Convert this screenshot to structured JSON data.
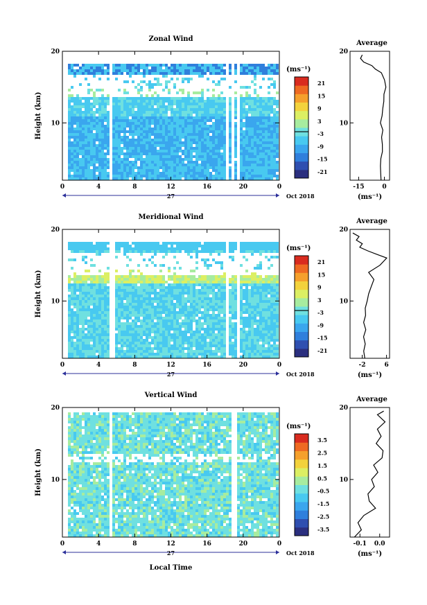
{
  "xlabel": "Local Time",
  "date_label": "Oct 2018",
  "day_label": "27",
  "x_ticks": [
    "0",
    "4",
    "8",
    "12",
    "16",
    "20",
    "0"
  ],
  "colorbar_unit": "(ms⁻¹)",
  "avg_title": "Average",
  "avg_xunit": "(ms⁻¹)",
  "colors": {
    "scale": [
      "#2b2f7f",
      "#2f4fb0",
      "#2f7fdc",
      "#3aa6ee",
      "#48c9f0",
      "#6fe0e0",
      "#a7ec9f",
      "#dcef63",
      "#f3d23c",
      "#f5a02c",
      "#ee6a22",
      "#d92b1f"
    ],
    "frame": "#000000",
    "axis_arrow": "#2b2f9a"
  },
  "chart_data": [
    {
      "type": "heatmap",
      "title": "Zonal Wind",
      "ylabel": "Height (km)",
      "xlim": [
        0,
        24
      ],
      "ylim": [
        2,
        20
      ],
      "y_ticks": [
        "10",
        "20"
      ],
      "colorbar_ticks": [
        "21",
        "15",
        "9",
        "3",
        "-3",
        "-9",
        "-15",
        "-21"
      ],
      "colorbar_range": [
        -24,
        24
      ],
      "gaps_hours": [
        [
          5.2,
          5.5
        ],
        [
          17.9,
          18.1
        ],
        [
          18.6,
          18.9
        ],
        [
          19.3,
          19.6
        ]
      ],
      "avg_profile": {
        "xticks": [
          "-15",
          "0"
        ],
        "xlim": [
          -20,
          3
        ],
        "height": [
          2,
          3,
          4,
          5,
          6,
          7,
          8,
          9,
          10,
          11,
          12,
          13,
          14,
          15,
          16,
          17,
          17.5,
          18,
          18.5,
          19,
          19.5
        ],
        "value": [
          -2,
          -2,
          -2.5,
          -2,
          -1.5,
          -1,
          -1.5,
          -1,
          -2,
          -1.5,
          -1,
          -0.5,
          0,
          1,
          0,
          -2,
          -5,
          -7,
          -12,
          -14,
          -13
        ]
      }
    },
    {
      "type": "heatmap",
      "title": "Meridional Wind",
      "ylabel": "Height (km)",
      "xlim": [
        0,
        24
      ],
      "ylim": [
        2,
        20
      ],
      "y_ticks": [
        "10",
        "20"
      ],
      "colorbar_ticks": [
        "21",
        "15",
        "9",
        "3",
        "-3",
        "-9",
        "-15",
        "-21"
      ],
      "colorbar_range": [
        -24,
        24
      ],
      "gaps_hours": [
        [
          5.2,
          5.6
        ],
        [
          17.8,
          18.1
        ],
        [
          19.2,
          19.5
        ]
      ],
      "avg_profile": {
        "xticks": [
          "-2",
          "6"
        ],
        "xlim": [
          -6,
          7
        ],
        "height": [
          2,
          3,
          4,
          5,
          6,
          7,
          8,
          9,
          10,
          11,
          12,
          13,
          14,
          15,
          16,
          16.5,
          17,
          17.5,
          18,
          18.5,
          19,
          19.5
        ],
        "value": [
          -1,
          -1.5,
          -1,
          -1.5,
          -1,
          -1.5,
          -1,
          -1,
          -0.5,
          0,
          1,
          2,
          0,
          4,
          6,
          3,
          0,
          -3,
          -2,
          -4,
          -3,
          -5
        ]
      }
    },
    {
      "type": "heatmap",
      "title": "Vertical Wind",
      "ylabel": "Height (km)",
      "xlim": [
        0,
        24
      ],
      "ylim": [
        2,
        20
      ],
      "y_ticks": [
        "10",
        "20"
      ],
      "colorbar_ticks": [
        "3.5",
        "2.5",
        "1.5",
        "0.5",
        "-0.5",
        "-1.5",
        "-2.5",
        "-3.5"
      ],
      "colorbar_range": [
        -4,
        4
      ],
      "gaps_hours": [
        [
          5.2,
          5.5
        ],
        [
          17.8,
          18.0
        ],
        [
          18.7,
          19.1
        ]
      ],
      "avg_profile": {
        "xticks": [
          "-0.1",
          "0.0"
        ],
        "xlim": [
          -0.15,
          0.05
        ],
        "height": [
          2,
          3,
          4,
          5,
          6,
          7,
          8,
          9,
          10,
          11,
          12,
          13,
          14,
          15,
          16,
          17,
          18,
          19,
          19.5
        ],
        "value": [
          -0.13,
          -0.09,
          -0.11,
          -0.08,
          -0.02,
          -0.05,
          -0.06,
          -0.03,
          -0.04,
          -0.01,
          -0.03,
          0.01,
          0.02,
          -0.02,
          0.01,
          -0.01,
          0.03,
          -0.01,
          0.02
        ]
      }
    }
  ]
}
